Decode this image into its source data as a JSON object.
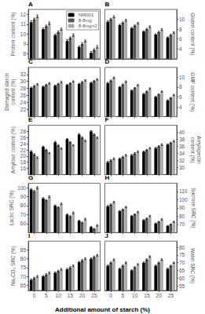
{
  "xlabel": "Additional amount of starch (%)",
  "chart_data": [
    {
      "type": "bar",
      "title": "A",
      "ylabel": "Protein content (%)",
      "categories": [
        "0",
        "5",
        "10",
        "15",
        "20",
        "25"
      ],
      "ylim": [
        7.5,
        12.5
      ],
      "yticks": [
        8,
        9,
        10,
        11,
        12
      ],
      "grid": false,
      "tick_labels": "y",
      "legend": "upper right",
      "series": [
        {
          "name": "NM001",
          "color": "#000000",
          "values": [
            11.2,
            10.5,
            9.9,
            9.3,
            8.7,
            8.1
          ],
          "errors": [
            0.15,
            0.12,
            0.1,
            0.13,
            0.11,
            0.14
          ]
        },
        {
          "name": "8-8mg",
          "color": "#555555",
          "values": [
            11.5,
            10.8,
            10.2,
            9.6,
            9.0,
            8.4
          ],
          "errors": [
            0.13,
            0.11,
            0.12,
            0.1,
            0.13,
            0.12
          ]
        },
        {
          "name": "8-8mg×2",
          "color": "#aaaaaa",
          "values": [
            11.8,
            11.1,
            10.5,
            9.9,
            9.3,
            8.7
          ],
          "errors": [
            0.14,
            0.13,
            0.11,
            0.12,
            0.1,
            0.13
          ]
        }
      ]
    },
    {
      "type": "bar",
      "title": "B",
      "y2label": "Gluten content (%)",
      "categories": [
        "0",
        "5",
        "10",
        "15",
        "20",
        "25"
      ],
      "y2lim": [
        2,
        12
      ],
      "y2ticks": [
        4,
        6,
        8,
        10
      ],
      "grid": false,
      "tick_labels": "y",
      "series": [
        {
          "name": "NM001",
          "color": "#000000",
          "axis": "y2",
          "values": [
            9.5,
            8.8,
            8.2,
            7.5,
            6.9,
            6.3
          ],
          "errors": [
            0.2,
            0.18,
            0.15,
            0.17,
            0.16,
            0.14
          ]
        },
        {
          "name": "8-8mg",
          "color": "#555555",
          "axis": "y2",
          "values": [
            10.0,
            9.3,
            8.7,
            8.0,
            7.4,
            6.8
          ],
          "errors": [
            0.18,
            0.16,
            0.14,
            0.16,
            0.15,
            0.13
          ]
        },
        {
          "name": "8-8mg×2",
          "color": "#aaaaaa",
          "axis": "y2",
          "values": [
            10.5,
            9.8,
            9.2,
            8.5,
            7.9,
            7.3
          ],
          "errors": [
            0.2,
            0.18,
            0.16,
            0.18,
            0.17,
            0.15
          ]
        }
      ]
    },
    {
      "type": "bar",
      "title": "C",
      "ylabel": "Damaged starch\ncontent (%)",
      "categories": [
        "0",
        "5",
        "10",
        "15",
        "20",
        "25"
      ],
      "ylim": [
        20,
        34
      ],
      "yticks": [
        22,
        24,
        26,
        28,
        30,
        32
      ],
      "grid": false,
      "tick_labels": "y",
      "series": [
        {
          "name": "NM001",
          "color": "#000000",
          "values": [
            28.2,
            28.5,
            28.8,
            29.0,
            29.3,
            29.6
          ],
          "errors": [
            0.2,
            0.18,
            0.2,
            0.15,
            0.17,
            0.19
          ]
        },
        {
          "name": "8-8mg",
          "color": "#555555",
          "values": [
            28.7,
            29.0,
            29.3,
            29.5,
            29.8,
            30.1
          ],
          "errors": [
            0.18,
            0.2,
            0.18,
            0.16,
            0.19,
            0.17
          ]
        },
        {
          "name": "8-8mg×2",
          "color": "#aaaaaa",
          "values": [
            29.2,
            29.5,
            29.8,
            30.0,
            30.3,
            30.6
          ],
          "errors": [
            0.2,
            0.22,
            0.2,
            0.18,
            0.21,
            0.19
          ]
        }
      ]
    },
    {
      "type": "bar",
      "title": "D",
      "y2label": "GMP content (%)",
      "categories": [
        "0",
        "5",
        "10",
        "15",
        "20",
        "25"
      ],
      "y2lim": [
        2,
        12
      ],
      "y2ticks": [
        4,
        6,
        8,
        10
      ],
      "grid": false,
      "tick_labels": "y",
      "series": [
        {
          "name": "NM001",
          "color": "#000000",
          "axis": "y2",
          "values": [
            8.8,
            8.0,
            7.3,
            6.6,
            6.0,
            5.3
          ],
          "errors": [
            0.15,
            0.14,
            0.12,
            0.13,
            0.11,
            0.12
          ]
        },
        {
          "name": "8-8mg",
          "color": "#555555",
          "axis": "y2",
          "values": [
            9.3,
            8.5,
            7.8,
            7.1,
            6.5,
            5.8
          ],
          "errors": [
            0.14,
            0.13,
            0.11,
            0.12,
            0.1,
            0.11
          ]
        },
        {
          "name": "8-8mg×2",
          "color": "#aaaaaa",
          "axis": "y2",
          "values": [
            9.9,
            9.1,
            8.4,
            7.7,
            7.1,
            6.4
          ],
          "errors": [
            0.16,
            0.15,
            0.13,
            0.14,
            0.12,
            0.13
          ]
        }
      ]
    },
    {
      "type": "bar",
      "title": "E",
      "ylabel": "Amylose content (%)",
      "categories": [
        "0",
        "5",
        "10",
        "15",
        "20",
        "25"
      ],
      "ylim": [
        14,
        30
      ],
      "yticks": [
        16,
        18,
        20,
        22,
        24,
        26,
        28
      ],
      "grid": false,
      "tick_labels": "y",
      "series": [
        {
          "name": "NM001",
          "color": "#000000",
          "values": [
            21.5,
            23.0,
            24.5,
            25.5,
            27.0,
            28.0
          ],
          "errors": [
            0.3,
            0.25,
            0.28,
            0.22,
            0.3,
            0.25
          ]
        },
        {
          "name": "8-8mg",
          "color": "#555555",
          "values": [
            20.5,
            22.0,
            23.5,
            24.5,
            26.0,
            27.0
          ],
          "errors": [
            0.28,
            0.23,
            0.26,
            0.2,
            0.28,
            0.23
          ]
        },
        {
          "name": "8-8mg×2",
          "color": "#aaaaaa",
          "values": [
            19.5,
            21.0,
            22.5,
            23.5,
            25.0,
            26.0
          ],
          "errors": [
            0.26,
            0.21,
            0.24,
            0.18,
            0.26,
            0.21
          ]
        }
      ]
    },
    {
      "type": "bar",
      "title": "F",
      "y2label": "Amylopectin\ncontent (%)",
      "categories": [
        "0",
        "5",
        "10",
        "15",
        "20",
        "25"
      ],
      "y2lim": [
        28,
        42
      ],
      "y2ticks": [
        30,
        32,
        34,
        36,
        38,
        40
      ],
      "grid": false,
      "tick_labels": "y",
      "series": [
        {
          "name": "NM001",
          "color": "#000000",
          "axis": "y2",
          "values": [
            31.5,
            32.5,
            33.5,
            34.5,
            35.5,
            36.5
          ],
          "errors": [
            0.25,
            0.22,
            0.24,
            0.2,
            0.23,
            0.21
          ]
        },
        {
          "name": "8-8mg",
          "color": "#555555",
          "axis": "y2",
          "values": [
            32.0,
            33.0,
            34.0,
            35.0,
            36.0,
            37.0
          ],
          "errors": [
            0.23,
            0.2,
            0.22,
            0.18,
            0.21,
            0.19
          ]
        },
        {
          "name": "8-8mg×2",
          "color": "#aaaaaa",
          "axis": "y2",
          "values": [
            32.5,
            33.5,
            34.5,
            35.5,
            36.5,
            37.5
          ],
          "errors": [
            0.25,
            0.22,
            0.24,
            0.2,
            0.23,
            0.21
          ]
        }
      ]
    },
    {
      "type": "bar",
      "title": "G",
      "ylabel": "Lactic SRC (%)",
      "categories": [
        "0",
        "5",
        "10",
        "15",
        "20",
        "25"
      ],
      "ylim": [
        50,
        105
      ],
      "yticks": [
        60,
        70,
        80,
        90,
        100
      ],
      "grid": false,
      "tick_labels": "y",
      "series": [
        {
          "name": "NM001",
          "color": "#000000",
          "values": [
            98.0,
            88.0,
            80.0,
            70.0,
            63.0,
            56.0
          ],
          "errors": [
            1.0,
            0.9,
            0.8,
            0.9,
            0.8,
            0.7
          ]
        },
        {
          "name": "8-8mg",
          "color": "#555555",
          "values": [
            96.0,
            86.0,
            78.0,
            68.0,
            61.0,
            54.0
          ],
          "errors": [
            0.9,
            0.8,
            0.7,
            0.8,
            0.7,
            0.6
          ]
        },
        {
          "name": "8-8mg×2",
          "color": "#aaaaaa",
          "values": [
            100.0,
            90.0,
            82.0,
            72.0,
            65.0,
            58.0
          ],
          "errors": [
            1.1,
            1.0,
            0.9,
            1.0,
            0.9,
            0.8
          ]
        }
      ]
    },
    {
      "type": "bar",
      "title": "H",
      "y2label": "Sucrose SRC (%)",
      "categories": [
        "0",
        "5",
        "10",
        "15",
        "20",
        "25"
      ],
      "y2lim": [
        60,
        120
      ],
      "y2ticks": [
        70,
        80,
        90,
        100,
        110
      ],
      "grid": false,
      "tick_labels": "y",
      "series": [
        {
          "name": "NM001",
          "color": "#000000",
          "axis": "y2",
          "values": [
            92.0,
            86.0,
            80.0,
            75.0,
            71.0,
            68.0
          ],
          "errors": [
            0.9,
            0.8,
            0.7,
            0.8,
            0.7,
            0.6
          ]
        },
        {
          "name": "8-8mg",
          "color": "#555555",
          "axis": "y2",
          "values": [
            94.0,
            88.0,
            82.0,
            77.0,
            73.0,
            70.0
          ],
          "errors": [
            0.8,
            0.7,
            0.6,
            0.7,
            0.6,
            0.5
          ]
        },
        {
          "name": "8-8mg×2",
          "color": "#aaaaaa",
          "axis": "y2",
          "values": [
            97.0,
            91.0,
            85.0,
            80.0,
            76.0,
            73.0
          ],
          "errors": [
            1.0,
            0.9,
            0.8,
            0.9,
            0.8,
            0.7
          ]
        }
      ]
    },
    {
      "type": "bar",
      "title": "I",
      "ylabel": "Na₂CO₃ SRC (%)",
      "categories": [
        "0",
        "5",
        "10",
        "15",
        "20",
        "25"
      ],
      "ylim": [
        62,
        90
      ],
      "yticks": [
        65,
        70,
        75,
        80,
        85
      ],
      "grid": false,
      "series": [
        {
          "name": "NM001",
          "color": "#000000",
          "values": [
            68.0,
            70.0,
            72.0,
            74.0,
            78.0,
            80.0
          ],
          "errors": [
            0.5,
            0.5,
            0.5,
            0.5,
            0.5,
            0.5
          ]
        },
        {
          "name": "8-8mg",
          "color": "#555555",
          "values": [
            69.0,
            71.0,
            73.0,
            75.0,
            79.0,
            81.0
          ],
          "errors": [
            0.5,
            0.5,
            0.5,
            0.5,
            0.5,
            0.5
          ]
        },
        {
          "name": "8-8mg×2",
          "color": "#aaaaaa",
          "values": [
            70.0,
            72.0,
            74.0,
            76.0,
            80.0,
            82.0
          ],
          "errors": [
            0.5,
            0.5,
            0.5,
            0.5,
            0.5,
            0.5
          ]
        }
      ]
    },
    {
      "type": "bar",
      "title": "J",
      "y2label": "Water SRC (%)",
      "categories": [
        "0",
        "5",
        "10",
        "15",
        "20",
        "25"
      ],
      "y2lim": [
        52,
        84
      ],
      "y2ticks": [
        55,
        60,
        65,
        70,
        75,
        80
      ],
      "grid": false,
      "series": [
        {
          "name": "NM001",
          "color": "#000000",
          "axis": "y2",
          "values": [
            68.0,
            66.0,
            65.0,
            70.0,
            68.0,
            66.0
          ],
          "errors": [
            0.5,
            0.5,
            0.4,
            0.5,
            0.5,
            0.4
          ]
        },
        {
          "name": "8-8mg",
          "color": "#555555",
          "axis": "y2",
          "values": [
            70.0,
            68.0,
            67.0,
            72.0,
            70.0,
            68.0
          ],
          "errors": [
            0.5,
            0.5,
            0.4,
            0.5,
            0.5,
            0.4
          ]
        },
        {
          "name": "8-8mg×2",
          "color": "#aaaaaa",
          "axis": "y2",
          "values": [
            72.0,
            70.0,
            69.0,
            74.0,
            72.0,
            70.0
          ],
          "errors": [
            0.5,
            0.5,
            0.4,
            0.5,
            0.5,
            0.4
          ]
        }
      ]
    }
  ]
}
